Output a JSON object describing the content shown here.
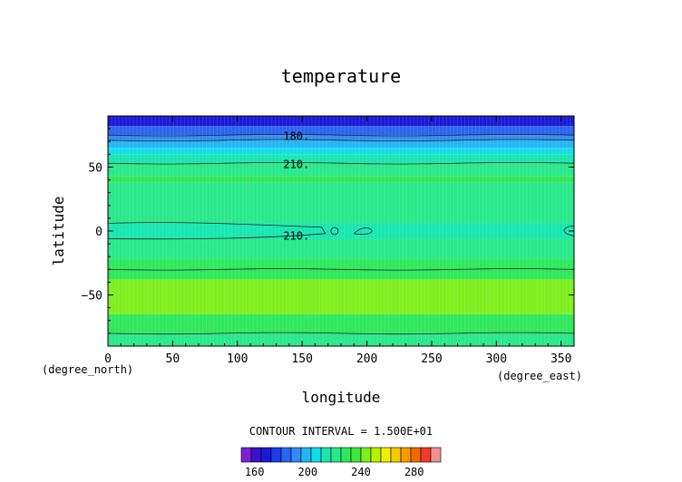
{
  "chart_data": {
    "type": "heatmap",
    "title": "temperature",
    "xlabel": "longitude",
    "ylabel": "latitude",
    "x_unit": "(degree_east)",
    "y_unit": "(degree_north)",
    "xlim": [
      0,
      360
    ],
    "ylim": [
      -90,
      90
    ],
    "x_ticks": [
      "0",
      "50",
      "100",
      "150",
      "200",
      "250",
      "300",
      "350"
    ],
    "y_ticks": [
      "50",
      "0",
      "−50"
    ],
    "contour_interval_label": "CONTOUR INTERVAL = 1.500E+01",
    "contour_labels": [
      {
        "text": "180.",
        "lon": 127,
        "lat": 74
      },
      {
        "text": "210.",
        "lon": 127,
        "lat": 52
      },
      {
        "text": "210.",
        "lon": 127,
        "lat": -4
      }
    ],
    "zonal_bands": [
      {
        "lat_from": 90,
        "lat_to": 82,
        "value": 172
      },
      {
        "lat_from": 82,
        "lat_to": 75,
        "value": 180
      },
      {
        "lat_from": 75,
        "lat_to": 71,
        "value": 188
      },
      {
        "lat_from": 71,
        "lat_to": 65,
        "value": 200
      },
      {
        "lat_from": 65,
        "lat_to": 60,
        "value": 208
      },
      {
        "lat_from": 60,
        "lat_to": 53,
        "value": 214
      },
      {
        "lat_from": 53,
        "lat_to": 43,
        "value": 220
      },
      {
        "lat_from": 43,
        "lat_to": 38,
        "value": 226
      },
      {
        "lat_from": 38,
        "lat_to": 6,
        "value": 220
      },
      {
        "lat_from": 6,
        "lat_to": -6,
        "value": 212
      },
      {
        "lat_from": -6,
        "lat_to": -22,
        "value": 222
      },
      {
        "lat_from": -22,
        "lat_to": -28,
        "value": 228
      },
      {
        "lat_from": -28,
        "lat_to": -38,
        "value": 232
      },
      {
        "lat_from": -38,
        "lat_to": -65,
        "value": 240
      },
      {
        "lat_from": -65,
        "lat_to": -80,
        "value": 232
      },
      {
        "lat_from": -80,
        "lat_to": -90,
        "value": 224
      }
    ],
    "colorbar": {
      "levels": [
        150,
        157.5,
        165,
        172.5,
        180,
        187.5,
        195,
        202.5,
        210,
        217.5,
        225,
        232.5,
        240,
        247.5,
        255,
        262.5,
        270,
        277.5,
        285,
        292.5
      ],
      "colors": [
        "#7d1fd6",
        "#3b10c8",
        "#1a1ad6",
        "#1d3be6",
        "#2a63f0",
        "#2f8bf5",
        "#22b6f5",
        "#14dbe8",
        "#18e6b0",
        "#28e88a",
        "#2ee85a",
        "#3fe83a",
        "#7ef01e",
        "#b6f000",
        "#eef000",
        "#f5c800",
        "#f59c00",
        "#f06a00",
        "#f03a2a",
        "#f29090"
      ],
      "tick_labels": [
        "160",
        "200",
        "240",
        "280"
      ],
      "tick_values": [
        160,
        200,
        240,
        280
      ]
    }
  }
}
